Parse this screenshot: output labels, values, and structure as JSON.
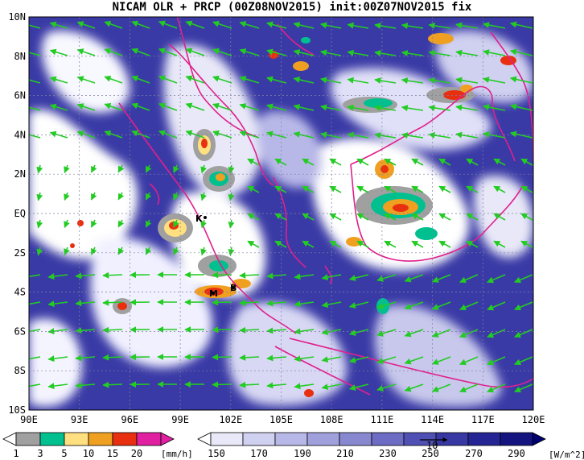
{
  "title": "NICAM OLR + PRCP (00Z08NOV2015) init:00Z07NOV2015 fix",
  "map": {
    "lon_labels": [
      "90E",
      "93E",
      "96E",
      "99E",
      "102E",
      "105E",
      "108E",
      "111E",
      "114E",
      "117E",
      "120E"
    ],
    "lat_labels": [
      "10N",
      "8N",
      "6N",
      "4N",
      "2N",
      "EQ",
      "2S",
      "4S",
      "6S",
      "8S",
      "10S"
    ],
    "city_markers": [
      "K",
      "M",
      "B"
    ],
    "coast_color": "#e0208c",
    "wind_color": "#22cc22"
  },
  "precip_colorbar": {
    "labels": [
      "1",
      "3",
      "5",
      "10",
      "15",
      "20"
    ],
    "unit": "[mm/h]",
    "colors": [
      "#ffffff",
      "#a0a0a0",
      "#00c090",
      "#ffe080",
      "#f0a020",
      "#e83010",
      "#e020a0"
    ]
  },
  "olr_colorbar": {
    "labels": [
      "150",
      "170",
      "190",
      "210",
      "230",
      "250",
      "270",
      "290"
    ],
    "unit": "[W/m^2]",
    "colors": [
      "#ffffff",
      "#e8e8f8",
      "#d0d0f0",
      "#b8b8e8",
      "#a0a0dc",
      "#8888d0",
      "#6c6cc4",
      "#5050b4",
      "#3838a4",
      "#242494",
      "#141480",
      "#000070"
    ]
  },
  "vector_ref_label": "10"
}
